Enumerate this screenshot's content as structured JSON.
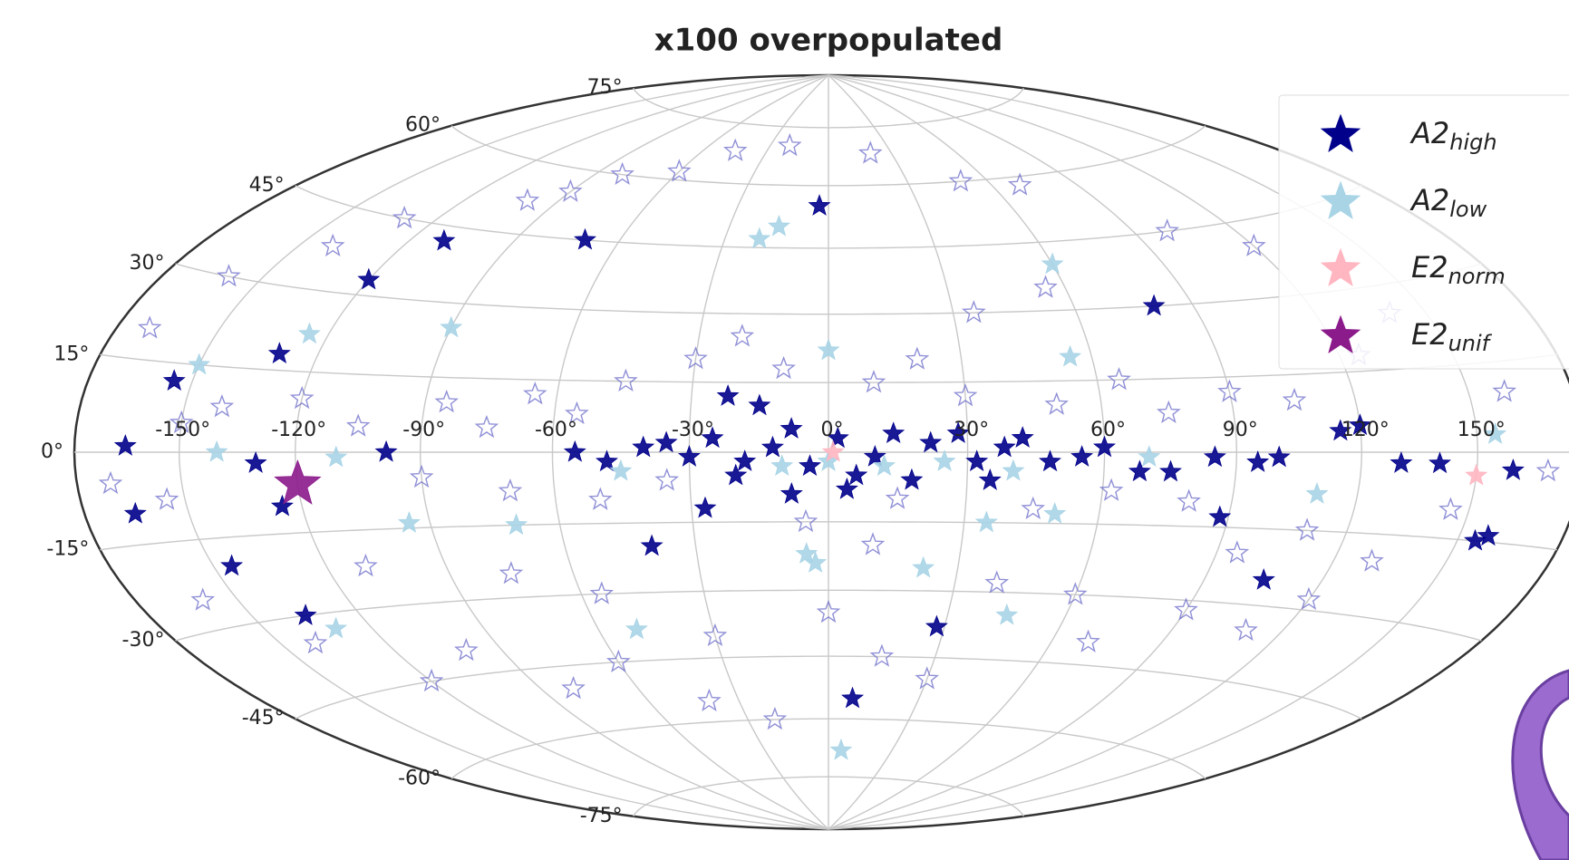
{
  "chart_data": {
    "type": "scatter",
    "projection": "hammer",
    "title": "x100 overpopulated",
    "xlim": [
      -180,
      180
    ],
    "ylim": [
      -90,
      90
    ],
    "xticks": [
      {
        "value": -150,
        "label": "-150°"
      },
      {
        "value": -120,
        "label": "-120°"
      },
      {
        "value": -90,
        "label": "-90°"
      },
      {
        "value": -60,
        "label": "-60°"
      },
      {
        "value": -30,
        "label": "-30°"
      },
      {
        "value": 0,
        "label": "0°"
      },
      {
        "value": 30,
        "label": "30°"
      },
      {
        "value": 60,
        "label": "60°"
      },
      {
        "value": 90,
        "label": "90°"
      },
      {
        "value": 120,
        "label": "120°"
      },
      {
        "value": 150,
        "label": "150°"
      }
    ],
    "yticks": [
      {
        "value": -75,
        "label": "-75°"
      },
      {
        "value": -60,
        "label": "-60°"
      },
      {
        "value": -45,
        "label": "-45°"
      },
      {
        "value": -30,
        "label": "-30°"
      },
      {
        "value": -15,
        "label": "-15°"
      },
      {
        "value": 0,
        "label": "0°"
      },
      {
        "value": 15,
        "label": "15°"
      },
      {
        "value": 30,
        "label": "30°"
      },
      {
        "value": 45,
        "label": "45°"
      },
      {
        "value": 60,
        "label": "60°"
      },
      {
        "value": 75,
        "label": "75°"
      }
    ],
    "grid": true,
    "legend": "upper right",
    "series": [
      {
        "color": "#6b6bc9",
        "filled": false,
        "x": [
          -160,
          -140,
          -130,
          -100,
          -90,
          -80,
          -60,
          -45,
          -20,
          20,
          50,
          70,
          100,
          120,
          140,
          -150,
          -170,
          -155,
          -140,
          -120,
          -105,
          -90,
          -85,
          -75,
          -70,
          -65,
          -55,
          -50,
          -45,
          -35,
          -30,
          -20,
          -10,
          10,
          15,
          20,
          30,
          35,
          45,
          50,
          55,
          62,
          65,
          75,
          80,
          90,
          95,
          105,
          110,
          125,
          130,
          145,
          160,
          170,
          -170,
          -160,
          -140,
          -120,
          -100,
          -80,
          -60,
          -40,
          -20,
          0,
          15,
          30,
          40,
          60,
          70,
          90,
          110,
          120,
          -110,
          -75,
          -55,
          -30,
          -5,
          10
        ],
        "y": [
          30,
          38,
          45,
          52,
          55,
          60,
          62,
          68,
          70,
          68,
          60,
          58,
          45,
          40,
          25,
          5,
          -5,
          -8,
          8,
          10,
          5,
          -5,
          10,
          5,
          -8,
          12,
          8,
          -10,
          15,
          -6,
          20,
          25,
          18,
          15,
          -10,
          20,
          12,
          30,
          -12,
          10,
          35,
          -8,
          15,
          8,
          -10,
          12,
          -20,
          10,
          -15,
          18,
          -20,
          -10,
          10,
          -3,
          20,
          -25,
          -35,
          -45,
          -40,
          -50,
          -45,
          -55,
          -60,
          -35,
          -45,
          -50,
          -28,
          -30,
          -40,
          -32,
          -35,
          -28,
          -22,
          -25,
          -30,
          -40,
          -15,
          -20
        ]
      },
      {
        "name": "A2",
        "subscript": "high",
        "color": "#00008b",
        "filled": true,
        "x": [
          -3,
          -110,
          -70,
          -120,
          -130,
          -155,
          -22,
          -15,
          80,
          120,
          115,
          -40,
          -27,
          -135,
          28,
          8,
          105,
          155,
          158,
          88,
          -165,
          -145,
          -125,
          -130,
          -165,
          -98,
          -55,
          -48,
          -40,
          -35,
          -30,
          -25,
          -18,
          -12,
          -8,
          -4,
          2,
          6,
          10,
          14,
          18,
          22,
          28,
          32,
          38,
          42,
          48,
          55,
          60,
          68,
          75,
          85,
          95,
          100,
          130,
          140,
          160,
          -8,
          4,
          -20,
          35
        ],
        "y": [
          55,
          42,
          45,
          33,
          18,
          12,
          12,
          10,
          30,
          5,
          4,
          -20,
          -12,
          -30,
          -38,
          -55,
          -25,
          -15,
          -14,
          -13,
          -10,
          -20,
          -10,
          -2,
          1,
          0,
          0,
          -2,
          1,
          2,
          -1,
          3,
          -2,
          1,
          5,
          -3,
          3,
          -5,
          -1,
          4,
          -6,
          2,
          4,
          -2,
          1,
          3,
          -2,
          -1,
          1,
          -4,
          -4,
          -1,
          -2,
          -1,
          -2,
          -2,
          -3,
          -9,
          -8,
          -5,
          -6
        ]
      },
      {
        "name": "A2",
        "subscript": "low",
        "color": "#a8d4e6",
        "filled": true,
        "x": [
          0,
          -15,
          -20,
          55,
          60,
          -125,
          -150,
          -95,
          -70,
          35,
          50,
          6,
          -50,
          -5,
          22,
          -3,
          -10,
          0,
          12,
          25,
          40,
          -45,
          70,
          110,
          -110,
          -140,
          155,
          -130,
          45,
          -90
        ],
        "y": [
          22,
          50,
          47,
          20,
          40,
          22,
          15,
          -14,
          -15,
          -15,
          -13,
          -68,
          -38,
          -22,
          -25,
          -24,
          -3,
          -2,
          -3,
          -2,
          -4,
          -4,
          -1,
          -8,
          -1,
          0,
          3,
          -33,
          -35,
          25
        ]
      },
      {
        "name": "E2",
        "subscript": "norm",
        "color": "#ffb6c1",
        "filled": true,
        "x": [
          150,
          1
        ],
        "y": [
          -4,
          0
        ]
      },
      {
        "name": "E2",
        "subscript": "unif",
        "color": "#8b1a8b",
        "filled": true,
        "marker_size": 2.2,
        "x": [
          -120
        ],
        "y": [
          -6
        ]
      }
    ]
  }
}
